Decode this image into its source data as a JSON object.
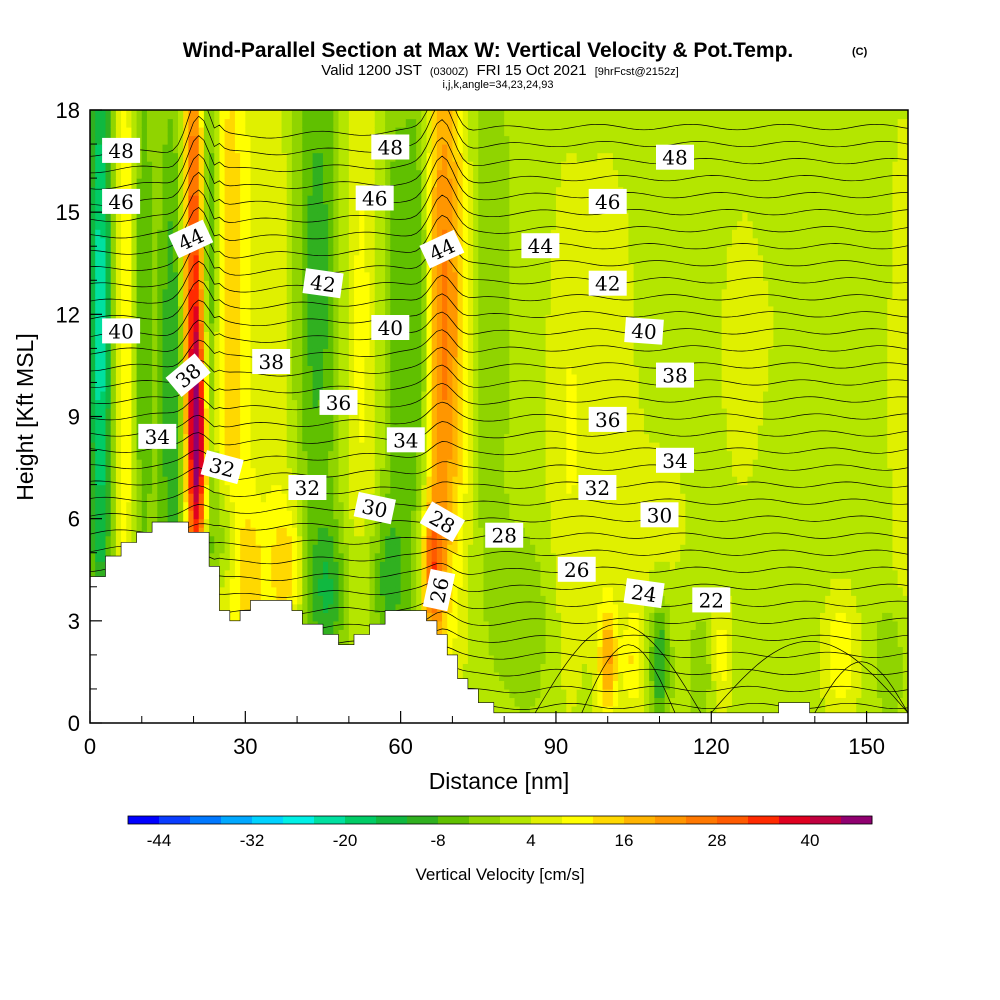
{
  "title": {
    "main": "Wind-Parallel Section at Max W: Vertical Velocity & Pot.Temp.",
    "copyright": "(C)",
    "valid_prefix": "Valid 1200 JST",
    "valid_utc": "(0300Z)",
    "valid_date": "FRI 15 Oct 2021",
    "forecast": "[9hrFcst@2152z]",
    "grid_info": "i,j,k,angle=34,23,24,93"
  },
  "chart_data": {
    "type": "heatmap",
    "xlabel": "Distance [nm]",
    "ylabel": "Height [Kft MSL]",
    "xlim": [
      0,
      158
    ],
    "ylim": [
      0,
      18
    ],
    "x_ticks": [
      0,
      30,
      60,
      90,
      120,
      150
    ],
    "y_ticks": [
      0,
      3,
      6,
      9,
      12,
      15,
      18
    ],
    "x_tick_labels": [
      "0",
      "30",
      "60",
      "90",
      "120",
      "150"
    ],
    "y_tick_labels": [
      "0",
      "3",
      "6",
      "9",
      "12",
      "15",
      "18"
    ],
    "colorbar": {
      "title": "Vertical Velocity [cm/s]",
      "min": -48,
      "max": 48,
      "step": 4,
      "tick_values": [
        -44,
        -32,
        -20,
        -8,
        4,
        16,
        28,
        40
      ],
      "tick_labels": [
        "-44",
        "-32",
        "-20",
        "-8",
        "4",
        "16",
        "28",
        "40"
      ],
      "colors": [
        "#0000ff",
        "#0a3cff",
        "#0078ff",
        "#00a8ff",
        "#00d2ff",
        "#00f0e6",
        "#00e0a0",
        "#00cc66",
        "#10b840",
        "#30b020",
        "#60c000",
        "#90d400",
        "#b4e600",
        "#e0f000",
        "#ffff00",
        "#ffd800",
        "#ffb400",
        "#ff9600",
        "#ff7800",
        "#ff5a00",
        "#ff2a00",
        "#e00020",
        "#c00040",
        "#900070"
      ]
    },
    "terrain": [
      [
        0,
        4.3
      ],
      [
        3,
        4.3
      ],
      [
        3,
        4.9
      ],
      [
        6,
        4.9
      ],
      [
        6,
        5.3
      ],
      [
        9,
        5.3
      ],
      [
        9,
        5.6
      ],
      [
        12,
        5.6
      ],
      [
        12,
        5.9
      ],
      [
        19,
        5.9
      ],
      [
        19,
        5.6
      ],
      [
        23,
        5.6
      ],
      [
        23,
        4.6
      ],
      [
        25,
        4.6
      ],
      [
        25,
        3.3
      ],
      [
        27,
        3.3
      ],
      [
        27,
        3.0
      ],
      [
        29,
        3.0
      ],
      [
        29,
        3.3
      ],
      [
        31,
        3.3
      ],
      [
        31,
        3.6
      ],
      [
        39,
        3.6
      ],
      [
        39,
        3.3
      ],
      [
        41,
        3.3
      ],
      [
        41,
        2.9
      ],
      [
        45,
        2.9
      ],
      [
        45,
        2.6
      ],
      [
        48,
        2.6
      ],
      [
        48,
        2.3
      ],
      [
        51,
        2.3
      ],
      [
        51,
        2.6
      ],
      [
        54,
        2.6
      ],
      [
        54,
        2.9
      ],
      [
        57,
        2.9
      ],
      [
        57,
        3.3
      ],
      [
        65,
        3.3
      ],
      [
        65,
        3.0
      ],
      [
        67,
        3.0
      ],
      [
        67,
        2.6
      ],
      [
        69,
        2.6
      ],
      [
        69,
        2.0
      ],
      [
        71,
        2.0
      ],
      [
        71,
        1.3
      ],
      [
        73,
        1.3
      ],
      [
        73,
        1.0
      ],
      [
        75,
        1.0
      ],
      [
        75,
        0.6
      ],
      [
        78,
        0.6
      ],
      [
        78,
        0.3
      ],
      [
        133,
        0.3
      ],
      [
        133,
        0.6
      ],
      [
        139,
        0.6
      ],
      [
        139,
        0.3
      ],
      [
        158,
        0.3
      ],
      [
        158,
        0
      ],
      [
        0,
        0
      ]
    ],
    "w_features": [
      {
        "x": 2,
        "y": 12,
        "sx": 1.6,
        "sy": 7,
        "w": -24
      },
      {
        "x": 7,
        "y": 12,
        "sx": 1.5,
        "sy": 7,
        "w": 12
      },
      {
        "x": 10,
        "y": 12,
        "sx": 1.5,
        "sy": 7,
        "w": -10
      },
      {
        "x": 16,
        "y": 10,
        "sx": 2.0,
        "sy": 6,
        "w": -14
      },
      {
        "x": 20,
        "y": 13,
        "sx": 1.5,
        "sy": 6,
        "w": 32
      },
      {
        "x": 21,
        "y": 8,
        "sx": 1.4,
        "sy": 2.5,
        "w": 30
      },
      {
        "x": 23,
        "y": 12,
        "sx": 1.2,
        "sy": 7,
        "w": -18
      },
      {
        "x": 27,
        "y": 12,
        "sx": 3.0,
        "sy": 8,
        "w": 14
      },
      {
        "x": 36,
        "y": 12,
        "sx": 3.0,
        "sy": 7,
        "w": 6
      },
      {
        "x": 44,
        "y": 13,
        "sx": 3.5,
        "sy": 6,
        "w": -12
      },
      {
        "x": 52,
        "y": 12,
        "sx": 3.0,
        "sy": 8,
        "w": 8
      },
      {
        "x": 59,
        "y": 12,
        "sx": 2.0,
        "sy": 6,
        "w": -8
      },
      {
        "x": 64,
        "y": 12,
        "sx": 2.0,
        "sy": 6,
        "w": -16
      },
      {
        "x": 67,
        "y": 12,
        "sx": 2.5,
        "sy": 7,
        "w": 22
      },
      {
        "x": 71,
        "y": 12,
        "sx": 2.5,
        "sy": 6,
        "w": 12
      },
      {
        "x": 76,
        "y": 13,
        "sx": 3.0,
        "sy": 6,
        "w": -6
      },
      {
        "x": 66,
        "y": 4.5,
        "sx": 1.5,
        "sy": 1.5,
        "w": 22
      },
      {
        "x": 38,
        "y": 4.5,
        "sx": 2.5,
        "sy": 1.5,
        "w": 12
      },
      {
        "x": 31,
        "y": 4.3,
        "sx": 2.0,
        "sy": 1.5,
        "w": 10
      },
      {
        "x": 46,
        "y": 3.8,
        "sx": 3.0,
        "sy": 1.5,
        "w": -12
      },
      {
        "x": 57,
        "y": 4.2,
        "sx": 3.0,
        "sy": 1.5,
        "w": -10
      },
      {
        "x": 26,
        "y": 5.5,
        "sx": 2.0,
        "sy": 1.2,
        "w": -10
      },
      {
        "x": 100,
        "y": 1.8,
        "sx": 1.3,
        "sy": 1.2,
        "w": 18
      },
      {
        "x": 110,
        "y": 1.8,
        "sx": 1.3,
        "sy": 1.3,
        "w": -14
      },
      {
        "x": 105,
        "y": 1.8,
        "sx": 1.5,
        "sy": 1.2,
        "w": 10
      },
      {
        "x": 122,
        "y": 2.0,
        "sx": 1.5,
        "sy": 1.2,
        "w": 8
      },
      {
        "x": 118,
        "y": 1.6,
        "sx": 1.5,
        "sy": 1.0,
        "w": -6
      },
      {
        "x": 145,
        "y": 2.0,
        "sx": 2.5,
        "sy": 1.4,
        "w": 10
      },
      {
        "x": 155,
        "y": 1.8,
        "sx": 2.0,
        "sy": 1.2,
        "w": -6
      },
      {
        "x": 92,
        "y": 8,
        "sx": 3.0,
        "sy": 6,
        "w": 6
      },
      {
        "x": 100,
        "y": 10,
        "sx": 4.0,
        "sy": 5,
        "w": 6
      },
      {
        "x": 126,
        "y": 11,
        "sx": 4.0,
        "sy": 4,
        "w": 4
      },
      {
        "x": 135,
        "y": 12,
        "sx": 3.0,
        "sy": 3,
        "w": 2
      },
      {
        "x": 110,
        "y": 6,
        "sx": 5.0,
        "sy": 2,
        "w": 4
      },
      {
        "x": 157,
        "y": 10,
        "sx": 2.0,
        "sy": 6,
        "w": 6
      },
      {
        "x": 85,
        "y": 3,
        "sx": 4.0,
        "sy": 2,
        "w": -4
      }
    ],
    "contour_labels": [
      {
        "text": "48",
        "x": 6,
        "y": 16.8,
        "angle": 0
      },
      {
        "text": "48",
        "x": 58,
        "y": 16.9,
        "angle": 0
      },
      {
        "text": "48",
        "x": 113,
        "y": 16.6,
        "angle": 0
      },
      {
        "text": "46",
        "x": 6,
        "y": 15.3,
        "angle": 0
      },
      {
        "text": "46",
        "x": 55,
        "y": 15.4,
        "angle": 0
      },
      {
        "text": "46",
        "x": 100,
        "y": 15.3,
        "angle": 0
      },
      {
        "text": "44",
        "x": 19.5,
        "y": 14.2,
        "angle": -25
      },
      {
        "text": "44",
        "x": 68,
        "y": 13.9,
        "angle": -25
      },
      {
        "text": "44",
        "x": 87,
        "y": 14.0,
        "angle": 0
      },
      {
        "text": "42",
        "x": 45,
        "y": 12.9,
        "angle": 8
      },
      {
        "text": "42",
        "x": 100,
        "y": 12.9,
        "angle": 0
      },
      {
        "text": "40",
        "x": 6,
        "y": 11.5,
        "angle": 0
      },
      {
        "text": "40",
        "x": 58,
        "y": 11.6,
        "angle": 0
      },
      {
        "text": "40",
        "x": 107,
        "y": 11.5,
        "angle": 4
      },
      {
        "text": "38",
        "x": 19,
        "y": 10.2,
        "angle": -40
      },
      {
        "text": "38",
        "x": 35,
        "y": 10.6,
        "angle": 0
      },
      {
        "text": "38",
        "x": 113,
        "y": 10.2,
        "angle": 0
      },
      {
        "text": "36",
        "x": 48,
        "y": 9.4,
        "angle": 0
      },
      {
        "text": "36",
        "x": 100,
        "y": 8.9,
        "angle": 0
      },
      {
        "text": "34",
        "x": 13,
        "y": 8.4,
        "angle": 0
      },
      {
        "text": "34",
        "x": 61,
        "y": 8.3,
        "angle": 0
      },
      {
        "text": "34",
        "x": 113,
        "y": 7.7,
        "angle": 0
      },
      {
        "text": "32",
        "x": 25.5,
        "y": 7.5,
        "angle": 15
      },
      {
        "text": "32",
        "x": 42,
        "y": 6.9,
        "angle": 0
      },
      {
        "text": "32",
        "x": 98,
        "y": 6.9,
        "angle": 0
      },
      {
        "text": "30",
        "x": 55,
        "y": 6.3,
        "angle": 12
      },
      {
        "text": "30",
        "x": 110,
        "y": 6.1,
        "angle": 0
      },
      {
        "text": "28",
        "x": 68,
        "y": 5.9,
        "angle": 30
      },
      {
        "text": "28",
        "x": 80,
        "y": 5.5,
        "angle": 0
      },
      {
        "text": "26",
        "x": 94,
        "y": 4.5,
        "angle": 0
      },
      {
        "text": "26",
        "x": 67.5,
        "y": 3.9,
        "angle": -78
      },
      {
        "text": "24",
        "x": 107,
        "y": 3.8,
        "angle": 8
      },
      {
        "text": "22",
        "x": 120,
        "y": 3.6,
        "angle": 0
      }
    ]
  }
}
